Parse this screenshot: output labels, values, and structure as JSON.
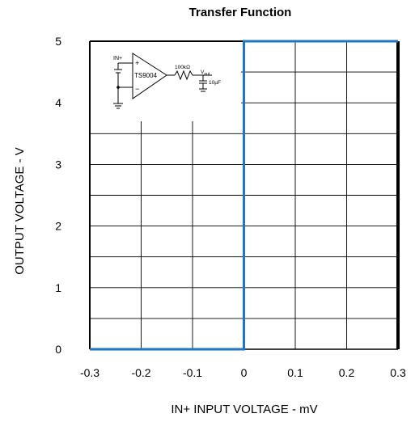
{
  "chart_data": {
    "type": "line",
    "title": "Transfer Function",
    "xlabel": "IN+ INPUT VOLTAGE - mV",
    "ylabel": "OUTPUT VOLTAGE - V",
    "xlim": [
      -0.3,
      0.3
    ],
    "ylim": [
      0,
      5
    ],
    "x_ticks": [
      {
        "value": -0.3,
        "label": "-0.3"
      },
      {
        "value": -0.2,
        "label": "-0.2"
      },
      {
        "value": -0.1,
        "label": "-0.1"
      },
      {
        "value": 0,
        "label": "0"
      },
      {
        "value": 0.1,
        "label": "0.1"
      },
      {
        "value": 0.2,
        "label": "0.2"
      },
      {
        "value": 0.3,
        "label": "0.3"
      }
    ],
    "y_ticks": [
      {
        "value": 0,
        "label": "0"
      },
      {
        "value": 1,
        "label": "1"
      },
      {
        "value": 2,
        "label": "2"
      },
      {
        "value": 3,
        "label": "3"
      },
      {
        "value": 4,
        "label": "4"
      },
      {
        "value": 5,
        "label": "5"
      }
    ],
    "grid": true,
    "x_minor_step": 0.1,
    "y_minor_step": 0.5,
    "series": [
      {
        "color": "#1f77c4",
        "points": [
          [
            -0.3,
            0
          ],
          [
            0,
            0
          ],
          [
            0,
            5
          ],
          [
            0.3,
            5
          ]
        ]
      }
    ],
    "inset": {
      "in_label": "IN+",
      "opamp_label": "TS9004",
      "plus_sign": "+",
      "minus_sign": "−",
      "resistor_label": "100kΩ",
      "vout_label": "V",
      "vout_sub": "out",
      "cap_label": "10µF"
    }
  }
}
